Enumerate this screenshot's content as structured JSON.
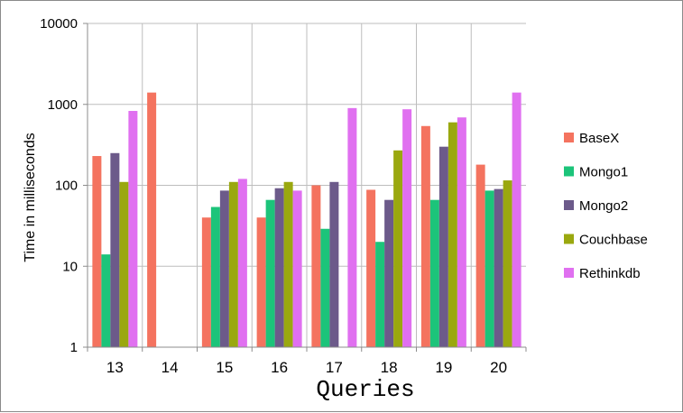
{
  "chart_data": {
    "type": "bar",
    "title": "",
    "xlabel": "Queries",
    "ylabel": "Time in milliseconds",
    "yscale": "log",
    "ylim": [
      1,
      10000
    ],
    "yticks": [
      "1",
      "10",
      "100",
      "1000",
      "10000"
    ],
    "grid": "vertical lines between categories",
    "legend_position": "right",
    "categories": [
      "13",
      "14",
      "15",
      "16",
      "17",
      "18",
      "19",
      "20"
    ],
    "series": [
      {
        "name": "BaseX",
        "color": "#f4735f",
        "values": [
          230,
          1400,
          40,
          40,
          100,
          88,
          540,
          180
        ]
      },
      {
        "name": "Mongo1",
        "color": "#1cc47a",
        "values": [
          14,
          null,
          54,
          66,
          29,
          20,
          66,
          86
        ]
      },
      {
        "name": "Mongo2",
        "color": "#6c5a8a",
        "values": [
          250,
          null,
          86,
          92,
          110,
          66,
          300,
          90
        ]
      },
      {
        "name": "Couchbase",
        "color": "#9aa80f",
        "values": [
          110,
          null,
          110,
          110,
          null,
          270,
          600,
          115
        ]
      },
      {
        "name": "Rethinkdb",
        "color": "#e070f0",
        "values": [
          830,
          null,
          120,
          86,
          900,
          870,
          690,
          1400
        ]
      }
    ]
  }
}
